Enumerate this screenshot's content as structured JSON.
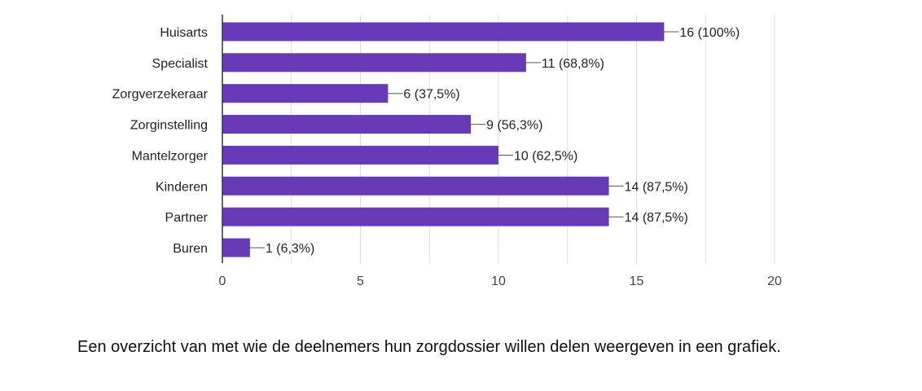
{
  "chart_data": {
    "type": "bar",
    "orientation": "horizontal",
    "categories": [
      "Huisarts",
      "Specialist",
      "Zorgverzekeraar",
      "Zorginstelling",
      "Mantelzorger",
      "Kinderen",
      "Partner",
      "Buren"
    ],
    "values": [
      16,
      11,
      6,
      9,
      10,
      14,
      14,
      1
    ],
    "data_labels": [
      "16 (100%)",
      "11 (68,8%)",
      "6 (37,5%)",
      "9 (56,3%)",
      "10 (62,5%)",
      "14 (87,5%)",
      "14 (87,5%)",
      "1 (6,3%)"
    ],
    "xlim": [
      0,
      20
    ],
    "xticks": [
      "0",
      "5",
      "10",
      "15",
      "20"
    ],
    "grid": true,
    "colors": {
      "bar": "#673ab7",
      "grid": "#dddddd",
      "axis": "#333333"
    }
  },
  "caption": "Een overzicht van met wie de deelnemers hun zorgdossier willen delen weergeven in een grafiek."
}
